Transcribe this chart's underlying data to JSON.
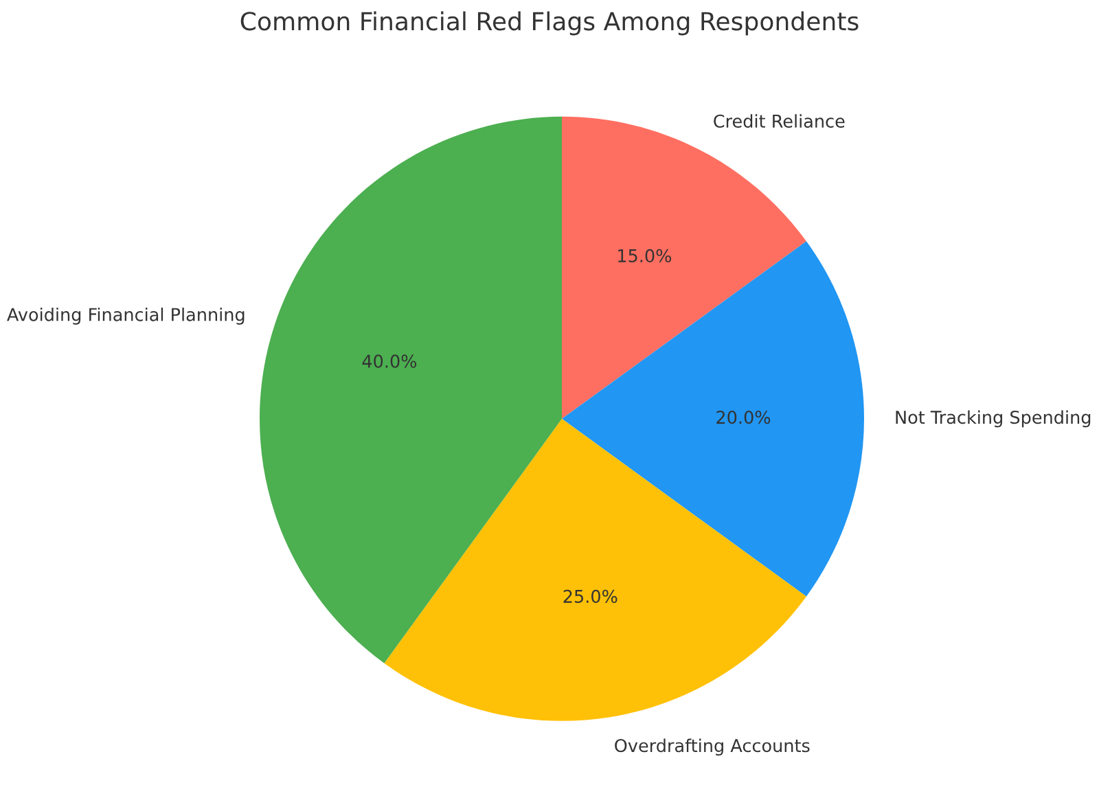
{
  "chart_data": {
    "type": "pie",
    "title": "Common Financial Red Flags Among Respondents",
    "categories": [
      "Credit Reliance",
      "Not Tracking Spending",
      "Overdrafting Accounts",
      "Avoiding Financial Planning"
    ],
    "values": [
      15,
      20,
      25,
      40
    ],
    "colors": [
      "#ff6f61",
      "#2196f3",
      "#ffc107",
      "#4caf50"
    ],
    "value_labels": [
      "15.0%",
      "20.0%",
      "25.0%",
      "40.0%"
    ],
    "legend": false
  }
}
